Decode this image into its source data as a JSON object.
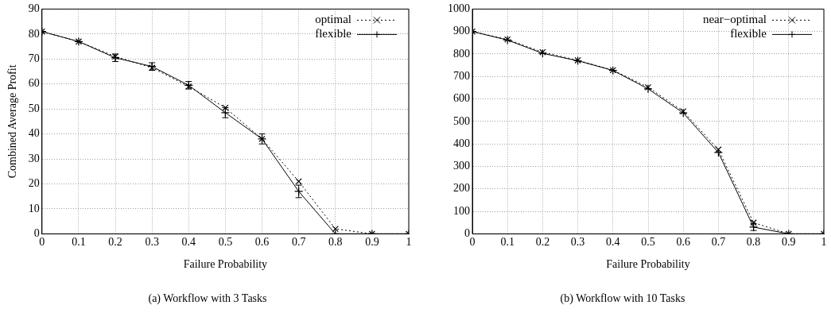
{
  "chart_data": [
    {
      "type": "line",
      "xlabel": "Failure Probability",
      "ylabel": "Combined Average Profit",
      "annotations": [
        "(a)  Workflow with 3 Tasks"
      ],
      "x": [
        0,
        0.1,
        0.2,
        0.3,
        0.4,
        0.5,
        0.6,
        0.7,
        0.8,
        0.9,
        1
      ],
      "xlim": [
        0,
        1
      ],
      "xticks": [
        0,
        0.1,
        0.2,
        0.3,
        0.4,
        0.5,
        0.6,
        0.7,
        0.8,
        0.9,
        1
      ],
      "ylim": [
        0,
        90
      ],
      "yticks": [
        0,
        10,
        20,
        30,
        40,
        50,
        60,
        70,
        80,
        90
      ],
      "grid": true,
      "legend": "top right",
      "series": [
        {
          "name": "optimal",
          "color": "#000000",
          "marker": "cross",
          "line_style": "dotted",
          "values": [
            81,
            77,
            71,
            66.5,
            59,
            50.5,
            38,
            21,
            2,
            0,
            0
          ]
        },
        {
          "name": "flexible",
          "color": "#000000",
          "marker": "plus",
          "line_style": "solid",
          "values": [
            81,
            77,
            70.5,
            67,
            59.5,
            48.5,
            38,
            17,
            0,
            0,
            0
          ],
          "errors": [
            null,
            null,
            1.5,
            1.5,
            1.5,
            2,
            2,
            2.5,
            null,
            null,
            null
          ]
        }
      ]
    },
    {
      "type": "line",
      "xlabel": "Failure Probability",
      "annotations": [
        "(b)  Workflow with 10 Tasks"
      ],
      "x": [
        0,
        0.1,
        0.2,
        0.3,
        0.4,
        0.5,
        0.6,
        0.7,
        0.8,
        0.9,
        1
      ],
      "xlim": [
        0,
        1
      ],
      "xticks": [
        0,
        0.1,
        0.2,
        0.3,
        0.4,
        0.5,
        0.6,
        0.7,
        0.8,
        0.9,
        1
      ],
      "ylim": [
        0,
        1000
      ],
      "yticks": [
        0,
        100,
        200,
        300,
        400,
        500,
        600,
        700,
        800,
        900,
        1000
      ],
      "grid": true,
      "legend": "top right",
      "series": [
        {
          "name": "near−optimal",
          "color": "#000000",
          "marker": "cross",
          "line_style": "dotted",
          "values": [
            900,
            865,
            808,
            772,
            728,
            652,
            545,
            375,
            50,
            0,
            0
          ]
        },
        {
          "name": "flexible",
          "color": "#000000",
          "marker": "plus",
          "line_style": "solid",
          "values": [
            900,
            862,
            803,
            770,
            727,
            645,
            538,
            362,
            30,
            0,
            0
          ],
          "errors": [
            null,
            null,
            null,
            null,
            null,
            null,
            null,
            null,
            15,
            null,
            null
          ]
        }
      ]
    }
  ]
}
